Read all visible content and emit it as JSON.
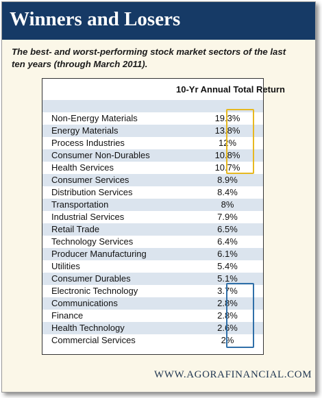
{
  "title": "Winners and Losers",
  "subtitle": "The best- and worst-performing stock market sectors of the last ten years (through March 2011).",
  "table": {
    "column_header": "10-Yr Annual Total Return",
    "rows": [
      {
        "label": "",
        "value": ""
      },
      {
        "label": "Non-Energy Materials",
        "value": "19.3%"
      },
      {
        "label": "Energy Materials",
        "value": "13.8%"
      },
      {
        "label": "Process Industries",
        "value": "12%"
      },
      {
        "label": "Consumer Non-Durables",
        "value": "10.8%"
      },
      {
        "label": "Health Services",
        "value": "10.7%"
      },
      {
        "label": "Consumer Services",
        "value": "8.9%"
      },
      {
        "label": "Distribution Services",
        "value": "8.4%"
      },
      {
        "label": "Transportation",
        "value": "8%"
      },
      {
        "label": "Industrial Services",
        "value": "7.9%"
      },
      {
        "label": "Retail Trade",
        "value": "6.5%"
      },
      {
        "label": "Technology Services",
        "value": "6.4%"
      },
      {
        "label": "Producer Manufacturing",
        "value": "6.1%"
      },
      {
        "label": "Utilities",
        "value": "5.4%"
      },
      {
        "label": "Consumer Durables",
        "value": "5.1%"
      },
      {
        "label": "Electronic Technology",
        "value": "3.7%"
      },
      {
        "label": "Communications",
        "value": "2.8%"
      },
      {
        "label": "Finance",
        "value": "2.8%"
      },
      {
        "label": "Health Technology",
        "value": "2.6%"
      },
      {
        "label": "Commercial Services",
        "value": "2%"
      }
    ],
    "highlight_colors": {
      "winners": "#e6b820",
      "losers": "#2f6fa8"
    }
  },
  "colors": {
    "banner": "#163a66",
    "background": "#fbf7e8",
    "row_shade": "#dbe4ee"
  },
  "footer": "WWW.AGORAFINANCIAL.COM"
}
